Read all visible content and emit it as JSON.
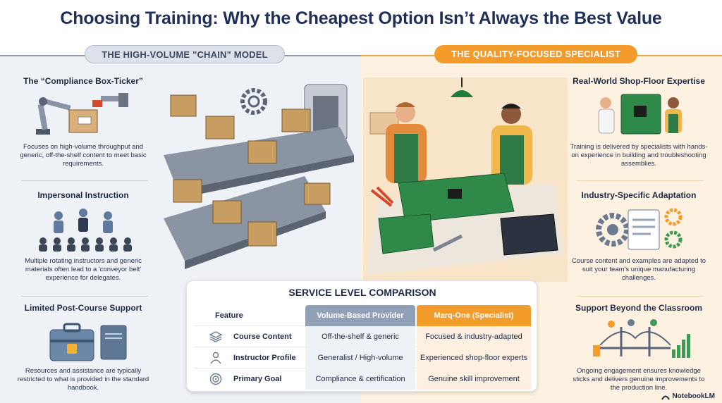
{
  "title": "Choosing Training: Why the Cheapest Option Isn’t Always the Best Value",
  "left": {
    "pill": "THE HIGH-VOLUME \"CHAIN\" MODEL",
    "sections": [
      {
        "heading": "The “Compliance Box-Ticker”",
        "text": "Focuses on high-volume throughput and generic, off-the-shelf content to meet basic requirements.",
        "icon": "robot-arm-box-icon"
      },
      {
        "heading": "Impersonal Instruction",
        "text": "Multiple rotating instructors and generic materials often lead to a 'conveyor belt' experience for delegates.",
        "icon": "crowd-instructors-icon"
      },
      {
        "heading": "Limited Post-Course Support",
        "text": "Resources and assistance are typically restricted to what is provided in the standard handbook.",
        "icon": "locked-toolbox-icon"
      }
    ]
  },
  "right": {
    "pill": "THE QUALITY-FOCUSED SPECIALIST",
    "sections": [
      {
        "heading": "Real-World Shop-Floor Expertise",
        "text": "Training is delivered by specialists with hands-on experience in building and troubleshooting assemblies.",
        "icon": "technicians-pcb-icon"
      },
      {
        "heading": "Industry-Specific Adaptation",
        "text": "Course content and examples are adapted to suit your team's unique manufacturing challenges.",
        "icon": "gears-document-icon"
      },
      {
        "heading": "Support Beyond the Classroom",
        "text": "Ongoing engagement ensures knowledge sticks and delivers genuine improvements to the production line.",
        "icon": "bridge-growth-icon"
      }
    ]
  },
  "comparison": {
    "title": "SERVICE LEVEL COMPARISON",
    "columns": [
      "Feature",
      "Volume-Based Provider",
      "Marq-One (Specialist)"
    ],
    "rows": [
      {
        "feature": "Course Content",
        "volume": "Off-the-shelf & generic",
        "specialist": "Focused & industry-adapted",
        "icon": "layers-icon"
      },
      {
        "feature": "Instructor Profile",
        "volume": "Generalist / High-volume",
        "specialist": "Experienced shop-floor experts",
        "icon": "person-icon"
      },
      {
        "feature": "Primary Goal",
        "volume": "Compliance & certification",
        "specialist": "Genuine skill improvement",
        "icon": "target-icon"
      }
    ]
  },
  "brand": "NotebookLM",
  "colors": {
    "navy": "#1f2f57",
    "orange": "#f39c2b",
    "slate": "#8fa0b7",
    "left_bg": "#eef1f5",
    "right_bg": "#fdf1e2"
  }
}
